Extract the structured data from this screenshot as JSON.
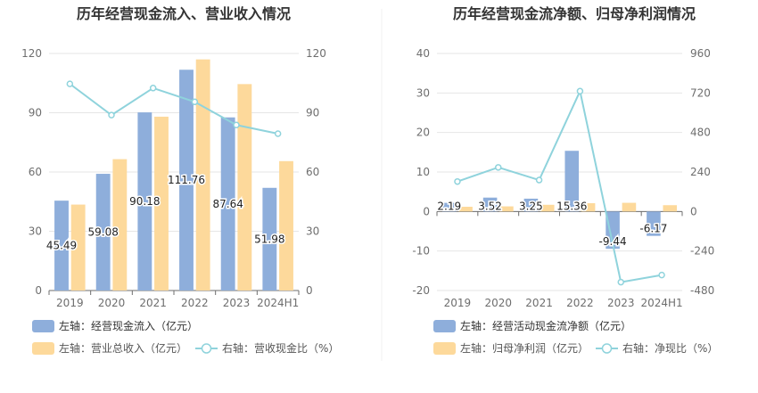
{
  "chart_data": [
    {
      "type": "bar+line",
      "title": "历年经营现金流入、营业收入情况",
      "categories": [
        "2019",
        "2020",
        "2021",
        "2022",
        "2023",
        "2024H1"
      ],
      "left_axis": {
        "ticks": [
          "0",
          "30",
          "60",
          "90",
          "120"
        ],
        "min": 0,
        "max": 120
      },
      "right_axis": {
        "ticks": [
          "0",
          "30",
          "60",
          "90",
          "120"
        ],
        "min": 0,
        "max": 120
      },
      "series": [
        {
          "name": "左轴：经营现金流入（亿元）",
          "type": "bar",
          "axis": "left",
          "color": "#8eaedb",
          "values": [
            45.49,
            59.08,
            90.18,
            111.76,
            87.64,
            51.98
          ],
          "labels": [
            "45.49",
            "59.08",
            "90.18",
            "111.76",
            "87.64",
            "51.98"
          ]
        },
        {
          "name": "左轴：营业总收入（亿元）",
          "type": "bar",
          "axis": "left",
          "color": "#fdd99b",
          "values": [
            43.5,
            66.5,
            88.0,
            117.0,
            104.5,
            65.5
          ]
        },
        {
          "name": "右轴：营收现金比（%）",
          "type": "line",
          "axis": "right",
          "color": "#8fd3dc",
          "values": [
            104.6,
            88.8,
            102.5,
            95.5,
            83.8,
            79.4
          ]
        }
      ]
    },
    {
      "type": "bar+line",
      "title": "历年经营现金流净额、归母净利润情况",
      "categories": [
        "2019",
        "2020",
        "2021",
        "2022",
        "2023",
        "2024H1"
      ],
      "left_axis": {
        "ticks": [
          "-20",
          "-10",
          "0",
          "10",
          "20",
          "30",
          "40"
        ],
        "min": -20,
        "max": 40
      },
      "right_axis": {
        "ticks": [
          "-480",
          "-240",
          "0",
          "240",
          "480",
          "720",
          "960"
        ],
        "min": -480,
        "max": 960
      },
      "series": [
        {
          "name": "左轴：经营活动现金流净额（亿元）",
          "type": "bar",
          "axis": "left",
          "color": "#8eaedb",
          "values": [
            2.19,
            3.52,
            3.25,
            15.36,
            -9.44,
            -6.17
          ],
          "labels": [
            "2.19",
            "3.52",
            "3.25",
            "15.36",
            "-9.44",
            "-6.17"
          ]
        },
        {
          "name": "左轴：归母净利润（亿元）",
          "type": "bar",
          "axis": "left",
          "color": "#fdd99b",
          "values": [
            1.2,
            1.3,
            1.7,
            2.1,
            2.2,
            1.6
          ]
        },
        {
          "name": "右轴：净现比（%）",
          "type": "line",
          "axis": "right",
          "color": "#8fd3dc",
          "values": [
            182,
            268,
            191,
            731,
            -429,
            -386
          ]
        }
      ]
    }
  ]
}
